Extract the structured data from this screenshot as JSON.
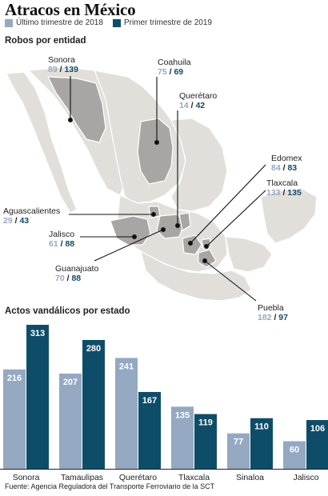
{
  "title": "Atracos en México",
  "legend": {
    "series_a": "Último trimestre de 2018",
    "series_b": "Primer trimestre de 2019",
    "color_a": "#94a9c1",
    "color_b": "#0e4d69"
  },
  "map": {
    "heading": "Robos por entidad",
    "states": [
      {
        "name": "Sonora",
        "q4_2018": "89",
        "q1_2019": "139"
      },
      {
        "name": "Coahuila",
        "q4_2018": "75",
        "q1_2019": "69"
      },
      {
        "name": "Querétaro",
        "q4_2018": "14",
        "q1_2019": "42"
      },
      {
        "name": "Edomex",
        "q4_2018": "84",
        "q1_2019": "83"
      },
      {
        "name": "Tlaxcala",
        "q4_2018": "133",
        "q1_2019": "135"
      },
      {
        "name": "Aguascalientes",
        "q4_2018": "29",
        "q1_2019": "43"
      },
      {
        "name": "Jalisco",
        "q4_2018": "61",
        "q1_2019": "88"
      },
      {
        "name": "Guanajuato",
        "q4_2018": "70",
        "q1_2019": "88"
      },
      {
        "name": "Puebla",
        "q4_2018": "182",
        "q1_2019": "97"
      }
    ],
    "sep": "/"
  },
  "chart_data": {
    "type": "bar",
    "title": "Actos vandálicos por estado",
    "categories": [
      "Sonora",
      "Tamaulipas",
      "Querétaro",
      "Tlaxcala",
      "Sinaloa",
      "Jalisco"
    ],
    "series": [
      {
        "name": "Último trimestre de 2018",
        "values": [
          216,
          207,
          241,
          135,
          77,
          60
        ]
      },
      {
        "name": "Primer trimestre de 2019",
        "values": [
          313,
          280,
          167,
          119,
          110,
          106
        ]
      }
    ],
    "ylim": [
      0,
      313
    ],
    "grid": false,
    "legend_position": "top-left"
  },
  "source": "Fuente: Agencia Reguladora del Transporte Ferroviario de la SCT"
}
